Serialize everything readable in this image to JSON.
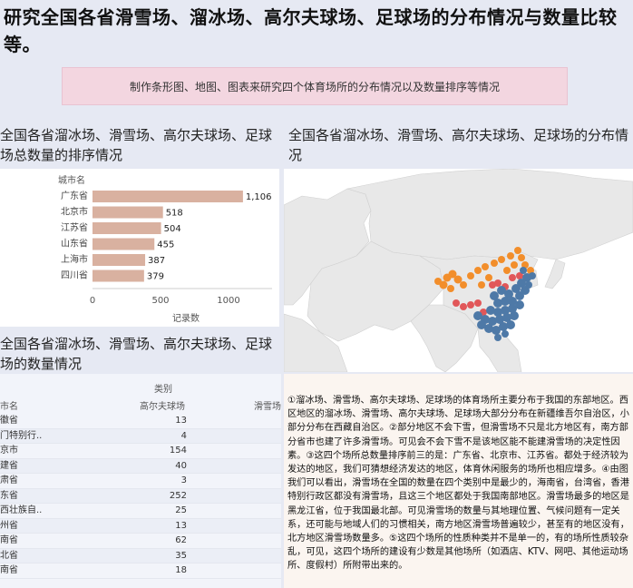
{
  "page_title": "研究全国各省滑雪场、溜冰场、高尔夫球场、足球场的分布情况与数量比较等。",
  "banner_text": "制作条形图、地图、图表来研究四个体育场所的分布情况以及数量排序等情况",
  "bar_section_title": "全国各省溜冰场、滑雪场、高尔夫球场、足球场总数量的排序情况",
  "map_section_title": "全国各省溜冰场、滑雪场、高尔夫球场、足球场的分布情况",
  "count_section_title": "全国各省溜冰场、滑雪场、高尔夫球场、足球场的数量情况",
  "colors": {
    "bar": "#d9b1a0",
    "map_blue": "#4e79a7",
    "map_orange": "#f28e2b",
    "map_red": "#e15759",
    "land": "#e8e8e8",
    "water": "#ffffff"
  },
  "chart_data": {
    "type": "bar",
    "orientation": "horizontal",
    "y_field_label": "城市名",
    "xlabel": "记录数",
    "categories": [
      "广东省",
      "北京市",
      "江苏省",
      "山东省",
      "上海市",
      "四川省"
    ],
    "values": [
      1106,
      518,
      504,
      455,
      387,
      379
    ],
    "value_labels": [
      "1,106",
      "518",
      "504",
      "455",
      "387",
      "379"
    ],
    "xticks": [
      "0",
      "500",
      "1000"
    ],
    "xlim": [
      0,
      1200
    ]
  },
  "table": {
    "category_header": "类别",
    "row_header": "市名",
    "columns": [
      "高尔夫球场",
      "滑雪场"
    ],
    "rows": [
      {
        "prov": "徽省",
        "golf": "13"
      },
      {
        "prov": "门特别行..",
        "golf": "4"
      },
      {
        "prov": "京市",
        "golf": "154"
      },
      {
        "prov": "建省",
        "golf": "40"
      },
      {
        "prov": "肃省",
        "golf": "3"
      },
      {
        "prov": "东省",
        "golf": "252"
      },
      {
        "prov": "西壮族自..",
        "golf": "25"
      },
      {
        "prov": "州省",
        "golf": "13"
      },
      {
        "prov": "南省",
        "golf": "62"
      },
      {
        "prov": "北省",
        "golf": "35"
      },
      {
        "prov": "南省",
        "golf": "18"
      }
    ]
  },
  "analysis_text": "①溜冰场、滑雪场、高尔夫球场、足球场的体育场所主要分布于我国的东部地区。西区地区的溜冰场、滑雪场、高尔夫球场、足球场大部分分布在新疆维吾尔自治区，小部分分布在西藏自治区。②部分地区不会下雪，但滑雪场不只是北方地区有，南方部分省市也建了许多滑雪场。可见会不会下雪不是该地区能不能建滑雪场的决定性因素。③这四个场所总数量排序前三的是：广东省、北京市、江苏省。都处于经济较为发达的地区，我们可猜想经济发达的地区，体育休闲服务的场所也相应增多。④由图我们可以看出，滑雪场在全国的数量在四个类别中是最少的，海南省，台湾省，香港特别行政区都没有滑雪场，且这三个地区都处于我国南部地区。滑雪场最多的地区是黑龙江省，位于我国最北部。可见滑雪场的数量与其地理位置、气候问题有一定关系，还可能与地域人们的习惯相关，南方地区滑雪场普遍较少，甚至有的地区没有，北方地区滑雪场数量多。⑤这四个场所的性质种类并不是单一的，有的场所性质较杂乱，可见，这四个场所的建设有少数是其他场所（如酒店、KTV、网吧、其他运动场所、度假村）所附带出来的。"
}
